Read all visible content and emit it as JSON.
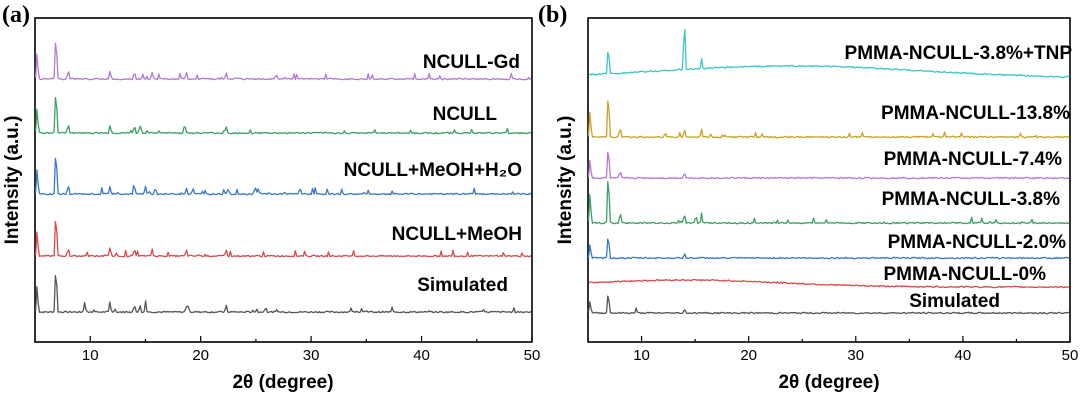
{
  "chart_data": [
    {
      "type": "line",
      "panel_label": "(a)",
      "xlabel": "2θ (degree)",
      "ylabel": "Intensity (a.u.)",
      "xlim": [
        5,
        50
      ],
      "x_ticks": [
        "10",
        "20",
        "30",
        "40",
        "50"
      ],
      "y_ticks": "none",
      "series": [
        {
          "name": "Simulated",
          "color": "#555555",
          "peaks_2theta": [
            5.2,
            6.9,
            9.5,
            11.8,
            14.0,
            14.5,
            15.0,
            18.7,
            22.3
          ]
        },
        {
          "name": "NCULL+MeOH",
          "color": "#d94b4b",
          "peaks_2theta": [
            5.2,
            6.9,
            8.0,
            11.8,
            14.0,
            15.6,
            18.7,
            22.3
          ]
        },
        {
          "name": "NCULL+MeOH+H₂O",
          "color": "#3a78c9",
          "peaks_2theta": [
            5.2,
            6.9,
            8.0,
            11.8,
            14.0,
            15.0,
            15.9,
            18.7,
            19.3,
            22.5,
            25.0,
            29.0
          ]
        },
        {
          "name": "NCULL",
          "color": "#3aa066",
          "peaks_2theta": [
            5.2,
            6.9,
            8.0,
            11.8,
            14.0,
            14.5,
            18.5,
            22.3
          ]
        },
        {
          "name": "NCULL-Gd",
          "color": "#b07ad6",
          "peaks_2theta": [
            5.2,
            6.9,
            8.0,
            11.8,
            14.0,
            15.6,
            18.7,
            22.3
          ]
        }
      ]
    },
    {
      "type": "line",
      "panel_label": "(b)",
      "xlabel": "2θ (degree)",
      "ylabel": "Intensity (a.u.)",
      "xlim": [
        5,
        50
      ],
      "x_ticks": [
        "10",
        "20",
        "30",
        "40",
        "50"
      ],
      "y_ticks": "none",
      "series": [
        {
          "name": "Simulated",
          "color": "#555555",
          "peaks_2theta": [
            5.2,
            6.9,
            9.5,
            14.0
          ]
        },
        {
          "name": "PMMA-NCULL-0%",
          "color": "#d94b4b",
          "peaks_2theta": [],
          "amorphous_hump_center": 14
        },
        {
          "name": "PMMA-NCULL-2.0%",
          "color": "#3a78c9",
          "peaks_2theta": [
            5.2,
            6.9,
            14.0
          ]
        },
        {
          "name": "PMMA-NCULL-3.8%",
          "color": "#3aa066",
          "peaks_2theta": [
            5.2,
            6.9,
            8.0,
            14.0,
            15.6
          ]
        },
        {
          "name": "PMMA-NCULL-7.4%",
          "color": "#b07ad6",
          "peaks_2theta": [
            5.2,
            6.9,
            8.0,
            14.0
          ]
        },
        {
          "name": "PMMA-NCULL-13.8%",
          "color": "#c9a227",
          "peaks_2theta": [
            5.2,
            6.9,
            8.0,
            14.0,
            15.6
          ]
        },
        {
          "name": "PMMA-NCULL-3.8%+TNP",
          "color": "#3cc6c6",
          "peaks_2theta": [
            6.9,
            14.0,
            15.6
          ],
          "amorphous_hump_center": 24
        }
      ]
    }
  ]
}
